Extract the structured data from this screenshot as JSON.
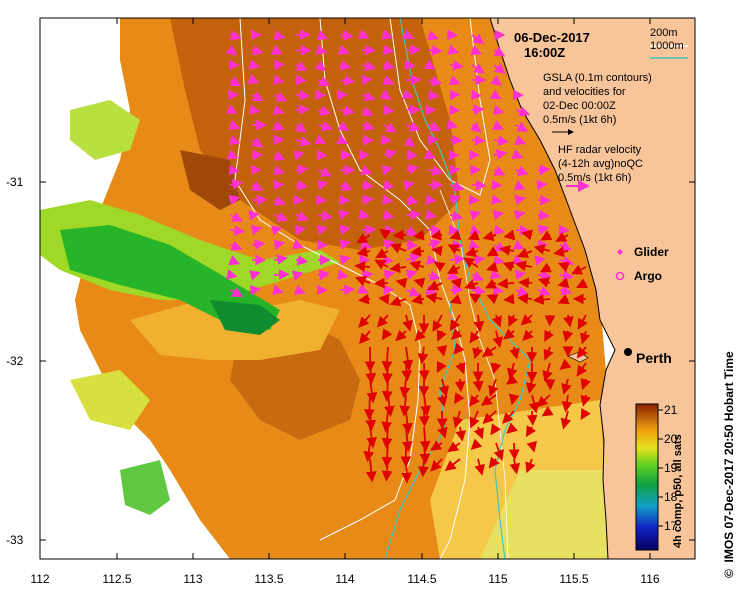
{
  "colors": {
    "land": "#f8c49a",
    "sst_warm": "#c9650c",
    "sst_mid": "#f0a020",
    "sst_cool": "#d8e030",
    "sst_cold": "#2ab82a",
    "radar_vector": "#e00000",
    "gsla_vector": "#ff30d0",
    "contour_200m": "#ffffff",
    "contour_1000m": "#3fc8c0"
  },
  "title": {
    "date": "06-Dec-2017",
    "time": "16:00Z"
  },
  "legend": {
    "contour_200": "200m",
    "contour_1000": "1000m"
  },
  "gsla": {
    "line1": "GSLA (0.1m contours)",
    "line2": "and velocities for",
    "line3": "02-Dec 00:00Z",
    "scale": "0.5m/s (1kt 6h)"
  },
  "radar": {
    "line1": "HF radar velocity",
    "line2": "(4-12h avg)noQC",
    "scale": "0.5m/s (1kt 6h)"
  },
  "markers": {
    "glider": "Glider",
    "argo": "Argo"
  },
  "place": {
    "name": "Perth"
  },
  "x_axis": {
    "ticks": [
      "112",
      "112.5",
      "113",
      "113.5",
      "114",
      "114.5",
      "115",
      "115.5",
      "116"
    ]
  },
  "y_axis": {
    "ticks": [
      "-31",
      "-32",
      "-33"
    ]
  },
  "colorbar": {
    "ticks": [
      "21",
      "20",
      "19",
      "18",
      "17"
    ],
    "title": "4h comp, p50, all sats"
  },
  "credit": "IMOS 07-Dec-2017 20:50 Hobart Time",
  "copyright_symbol": "©"
}
